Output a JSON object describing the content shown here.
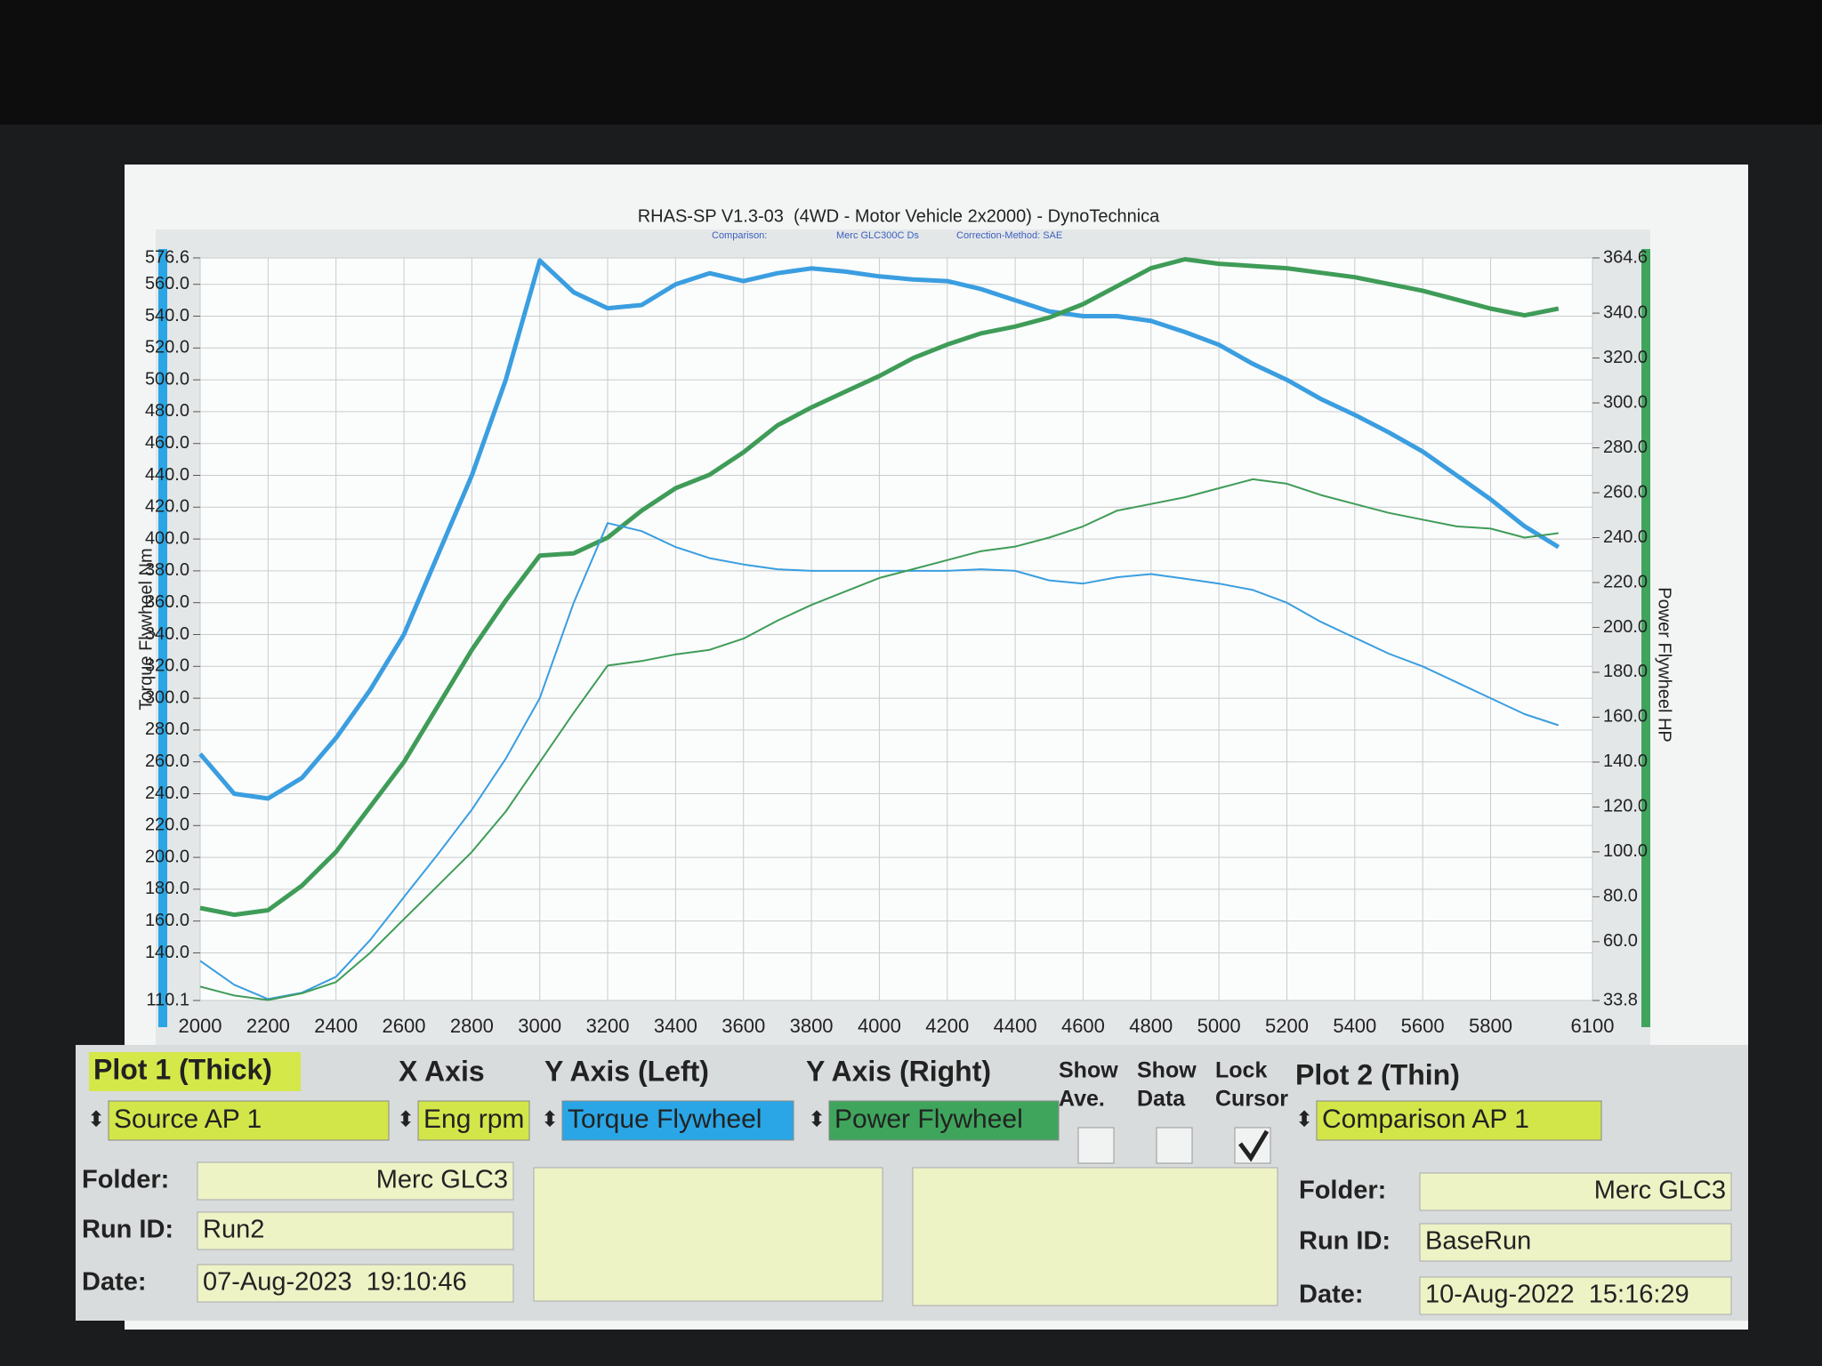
{
  "chart_data": {
    "type": "line",
    "title": "RHAS-SP V1.3-03  (4WD - Motor Vehicle 2x2000) - DynoTechnica",
    "subtitle": [
      "Comparison:",
      "Merc GLC300C Ds",
      "Correction-Method: SAE"
    ],
    "y_label": "Torque Flywheel Nm",
    "y2_label": "Power Flywheel HP",
    "grid": true,
    "x": [
      2000,
      2100,
      2200,
      2300,
      2400,
      2500,
      2600,
      2700,
      2800,
      2900,
      3000,
      3100,
      3200,
      3300,
      3400,
      3500,
      3600,
      3700,
      3800,
      3900,
      4000,
      4100,
      4200,
      4300,
      4400,
      4500,
      4600,
      4700,
      4800,
      4900,
      5000,
      5100,
      5200,
      5300,
      5400,
      5500,
      5600,
      5700,
      5800,
      5900,
      6000
    ],
    "xlim": [
      2000,
      6100
    ],
    "xticks": [
      2000,
      2200,
      2400,
      2600,
      2800,
      3000,
      3200,
      3400,
      3600,
      3800,
      4000,
      4200,
      4400,
      4600,
      4800,
      5000,
      5200,
      5400,
      5600,
      5800,
      6100
    ],
    "ylim": [
      110.1,
      576.6
    ],
    "yticks": [
      110.1,
      {
        "value": 140,
        "label": "140.0"
      },
      {
        "value": 160,
        "label": "160.0"
      },
      {
        "value": 180,
        "label": "180.0"
      },
      {
        "value": 200,
        "label": "200.0"
      },
      {
        "value": 220,
        "label": "220.0"
      },
      {
        "value": 240,
        "label": "240.0"
      },
      {
        "value": 260,
        "label": "260.0"
      },
      {
        "value": 280,
        "label": "280.0"
      },
      {
        "value": 300,
        "label": "300.0"
      },
      {
        "value": 320,
        "label": "320.0"
      },
      {
        "value": 340,
        "label": "340.0"
      },
      {
        "value": 360,
        "label": "360.0"
      },
      {
        "value": 380,
        "label": "380.0"
      },
      {
        "value": 400,
        "label": "400.0"
      },
      {
        "value": 420,
        "label": "420.0"
      },
      {
        "value": 440,
        "label": "440.0"
      },
      {
        "value": 460,
        "label": "460.0"
      },
      {
        "value": 480,
        "label": "480.0"
      },
      {
        "value": 500,
        "label": "500.0"
      },
      {
        "value": 520,
        "label": "520.0"
      },
      {
        "value": 540,
        "label": "540.0"
      },
      {
        "value": 560,
        "label": "560.0"
      },
      576.6
    ],
    "y2lim": [
      33.8,
      364.6
    ],
    "y2ticks": [
      33.8,
      {
        "value": 60,
        "label": "60.0"
      },
      {
        "value": 80,
        "label": "80.0"
      },
      {
        "value": 100,
        "label": "100.0"
      },
      {
        "value": 120,
        "label": "120.0"
      },
      {
        "value": 140,
        "label": "140.0"
      },
      {
        "value": 160,
        "label": "160.0"
      },
      {
        "value": 180,
        "label": "180.0"
      },
      {
        "value": 200,
        "label": "200.0"
      },
      {
        "value": 220,
        "label": "220.0"
      },
      {
        "value": 240,
        "label": "240.0"
      },
      {
        "value": 260,
        "label": "260.0"
      },
      {
        "value": 280,
        "label": "280.0"
      },
      {
        "value": 300,
        "label": "300.0"
      },
      {
        "value": 320,
        "label": "320.0"
      },
      {
        "value": 340,
        "label": "340.0"
      },
      364.6
    ],
    "series": [
      {
        "color": "#3a9ee0",
        "style": "thick",
        "values": [
          265,
          240,
          237,
          250,
          275,
          305,
          340,
          390,
          440,
          500,
          575,
          555,
          545,
          547,
          560,
          567,
          562,
          567,
          570,
          568,
          565,
          563,
          562,
          557,
          550,
          543,
          540,
          540,
          537,
          530,
          522,
          510,
          500,
          488,
          478,
          467,
          455,
          440,
          425,
          408,
          395
        ]
      },
      {
        "color": "#3f9c58",
        "style": "thick",
        "axis": "y2",
        "values": [
          75,
          72,
          74,
          85,
          100,
          120,
          140,
          165,
          190,
          212,
          232,
          233,
          240,
          252,
          262,
          268,
          278,
          290,
          298,
          305,
          312,
          320,
          326,
          331,
          334,
          338,
          344,
          352,
          360,
          364,
          362,
          361,
          360,
          358,
          356,
          353,
          350,
          346,
          342,
          339,
          342
        ]
      },
      {
        "color": "#3a9ee0",
        "style": "thin",
        "values": [
          135,
          120,
          111,
          115,
          125,
          148,
          175,
          202,
          230,
          262,
          300,
          360,
          410,
          405,
          395,
          388,
          384,
          381,
          380,
          380,
          380,
          380,
          380,
          381,
          380,
          374,
          372,
          376,
          378,
          375,
          372,
          368,
          360,
          348,
          338,
          328,
          320,
          310,
          300,
          290,
          283
        ]
      },
      {
        "color": "#3f9c58",
        "style": "thin",
        "axis": "y2",
        "values": [
          40,
          36,
          34,
          37,
          42,
          55,
          70,
          85,
          100,
          118,
          140,
          162,
          183,
          185,
          188,
          190,
          195,
          203,
          210,
          216,
          222,
          226,
          230,
          234,
          236,
          240,
          245,
          252,
          255,
          258,
          262,
          266,
          264,
          259,
          255,
          251,
          248,
          245,
          244,
          240,
          242
        ]
      }
    ]
  },
  "panel": {
    "plot1": {
      "title": "Plot 1 (Thick)",
      "source": "Source AP 1",
      "folder_label": "Folder:",
      "folder": "Merc GLC3",
      "run_label": "Run ID:",
      "run": "Run2",
      "date_label": "Date:",
      "date": "07-Aug-2023  19:10:46"
    },
    "x_axis": {
      "title": "X Axis",
      "value": "Eng rpm"
    },
    "y_left": {
      "title": "Y Axis (Left)",
      "value": "Torque Flywheel",
      "color": "#2aa6e6"
    },
    "y_right": {
      "title": "Y Axis (Right)",
      "value": "Power Flywheel",
      "color": "#3fa55c"
    },
    "options": [
      {
        "label1": "Show",
        "label2": "Ave.",
        "checked": false
      },
      {
        "label1": "Show",
        "label2": "Data",
        "checked": false
      },
      {
        "label1": "Lock",
        "label2": "Cursor",
        "checked": true
      }
    ],
    "plot2": {
      "title": "Plot 2 (Thin)",
      "source": "Comparison AP 1",
      "folder_label": "Folder:",
      "folder": "Merc GLC3",
      "run_label": "Run ID:",
      "run": "BaseRun",
      "date_label": "Date:",
      "date": "10-Aug-2022  15:16:29"
    }
  }
}
